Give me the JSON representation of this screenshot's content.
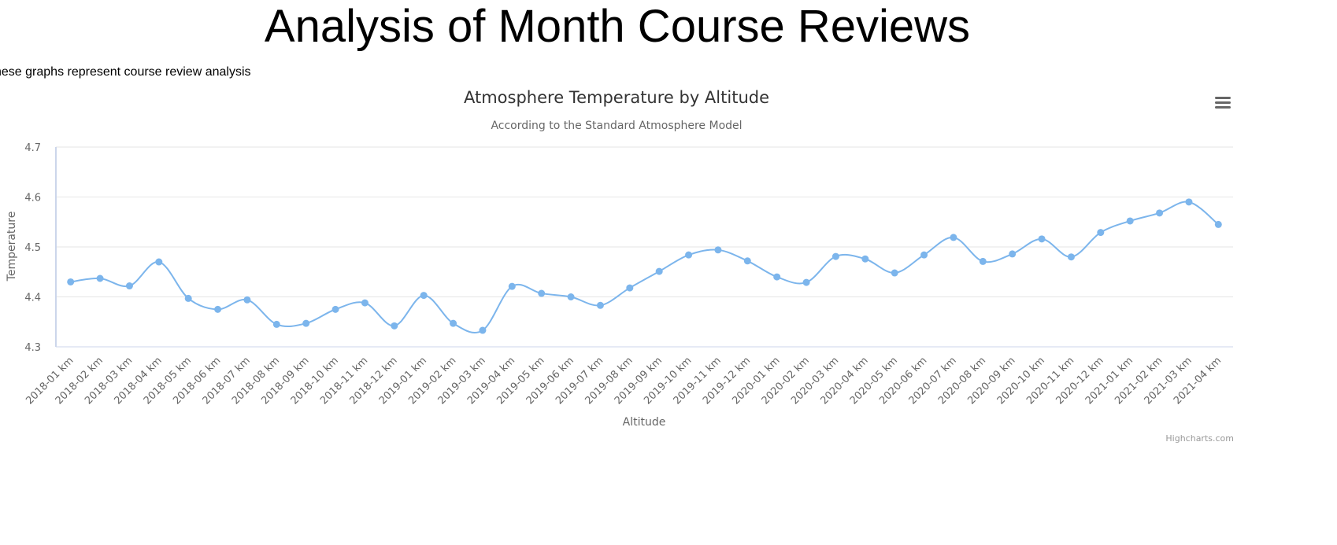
{
  "page": {
    "title": "Analysis of Month Course Reviews",
    "intro": "hese graphs represent course review analysis"
  },
  "chart_menu": {
    "icon": "hamburger-menu-icon"
  },
  "credits": "Highcharts.com",
  "colors": {
    "series": "#7cb5ec",
    "grid": "#e6e6e6",
    "axis_text": "#666666",
    "title": "#333333"
  },
  "chart_data": {
    "type": "line",
    "smooth": true,
    "title": "Atmosphere Temperature by Altitude",
    "subtitle": "According to the Standard Atmosphere Model",
    "xlabel": "Altitude",
    "ylabel": "Temperature",
    "ylim": [
      4.3,
      4.7
    ],
    "yticks": [
      "4.3",
      "4.4",
      "4.5",
      "4.6",
      "4.7"
    ],
    "grid": true,
    "legend": "none",
    "categories": [
      "2018-01 km",
      "2018-02 km",
      "2018-03 km",
      "2018-04 km",
      "2018-05 km",
      "2018-06 km",
      "2018-07 km",
      "2018-08 km",
      "2018-09 km",
      "2018-10 km",
      "2018-11 km",
      "2018-12 km",
      "2019-01 km",
      "2019-02 km",
      "2019-03 km",
      "2019-04 km",
      "2019-05 km",
      "2019-06 km",
      "2019-07 km",
      "2019-08 km",
      "2019-09 km",
      "2019-10 km",
      "2019-11 km",
      "2019-12 km",
      "2020-01 km",
      "2020-02 km",
      "2020-03 km",
      "2020-04 km",
      "2020-05 km",
      "2020-06 km",
      "2020-07 km",
      "2020-08 km",
      "2020-09 km",
      "2020-10 km",
      "2020-11 km",
      "2020-12 km",
      "2021-01 km",
      "2021-02 km",
      "2021-03 km",
      "2021-04 km"
    ],
    "series": [
      {
        "values": [
          4.43,
          4.437,
          4.422,
          4.47,
          4.397,
          4.375,
          4.394,
          4.345,
          4.347,
          4.375,
          4.388,
          4.342,
          4.403,
          4.347,
          4.333,
          4.421,
          4.407,
          4.4,
          4.383,
          4.418,
          4.451,
          4.484,
          4.494,
          4.472,
          4.44,
          4.429,
          4.481,
          4.476,
          4.448,
          4.484,
          4.519,
          4.471,
          4.486,
          4.516,
          4.48,
          4.529,
          4.552,
          4.568,
          4.59,
          4.545
        ]
      }
    ]
  }
}
